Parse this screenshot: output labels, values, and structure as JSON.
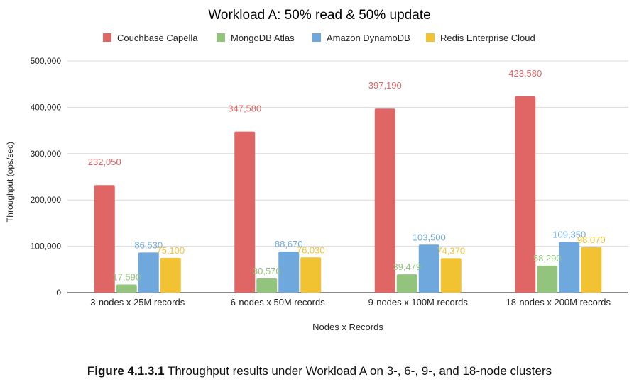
{
  "chart_data": {
    "type": "bar",
    "title": "Workload A: 50% read & 50% update",
    "xlabel": "Nodes x Records",
    "ylabel": "Throughput (ops/sec)",
    "ylim": [
      0,
      500000
    ],
    "yticks": [
      0,
      100000,
      200000,
      300000,
      400000,
      500000
    ],
    "ytick_labels": [
      "0",
      "100,000",
      "200,000",
      "300,000",
      "400,000",
      "500,000"
    ],
    "grid": true,
    "legend_position": "top",
    "categories": [
      "3-nodes x 25M records",
      "6-nodes x 50M records",
      "9-nodes x 100M records",
      "18-nodes x 200M records"
    ],
    "series": [
      {
        "name": "Couchbase Capella",
        "color": "#e06666",
        "values": [
          232050,
          347580,
          397190,
          423580
        ],
        "labels": [
          "232,050",
          "347,580",
          "397,190",
          "423,580"
        ]
      },
      {
        "name": "MongoDB Atlas",
        "color": "#93c47d",
        "values": [
          17590,
          30570,
          39479,
          58290
        ],
        "labels": [
          "17,590",
          "30,570",
          "39,479",
          "58,290"
        ]
      },
      {
        "name": "Amazon DynamoDB",
        "color": "#6fa8dc",
        "values": [
          86530,
          88670,
          103500,
          109350
        ],
        "labels": [
          "86,530",
          "88,670",
          "103,500",
          "109,350"
        ]
      },
      {
        "name": "Redis Enterprise Cloud",
        "color": "#f1c232",
        "values": [
          75100,
          76030,
          74370,
          98070
        ],
        "labels": [
          "75,100",
          "76,030",
          "74,370",
          "98,070"
        ]
      }
    ]
  },
  "caption": {
    "label": "Figure 4.1.3.1",
    "text": " Throughput results under Workload A on 3-, 6-, 9-, and 18-node clusters"
  }
}
